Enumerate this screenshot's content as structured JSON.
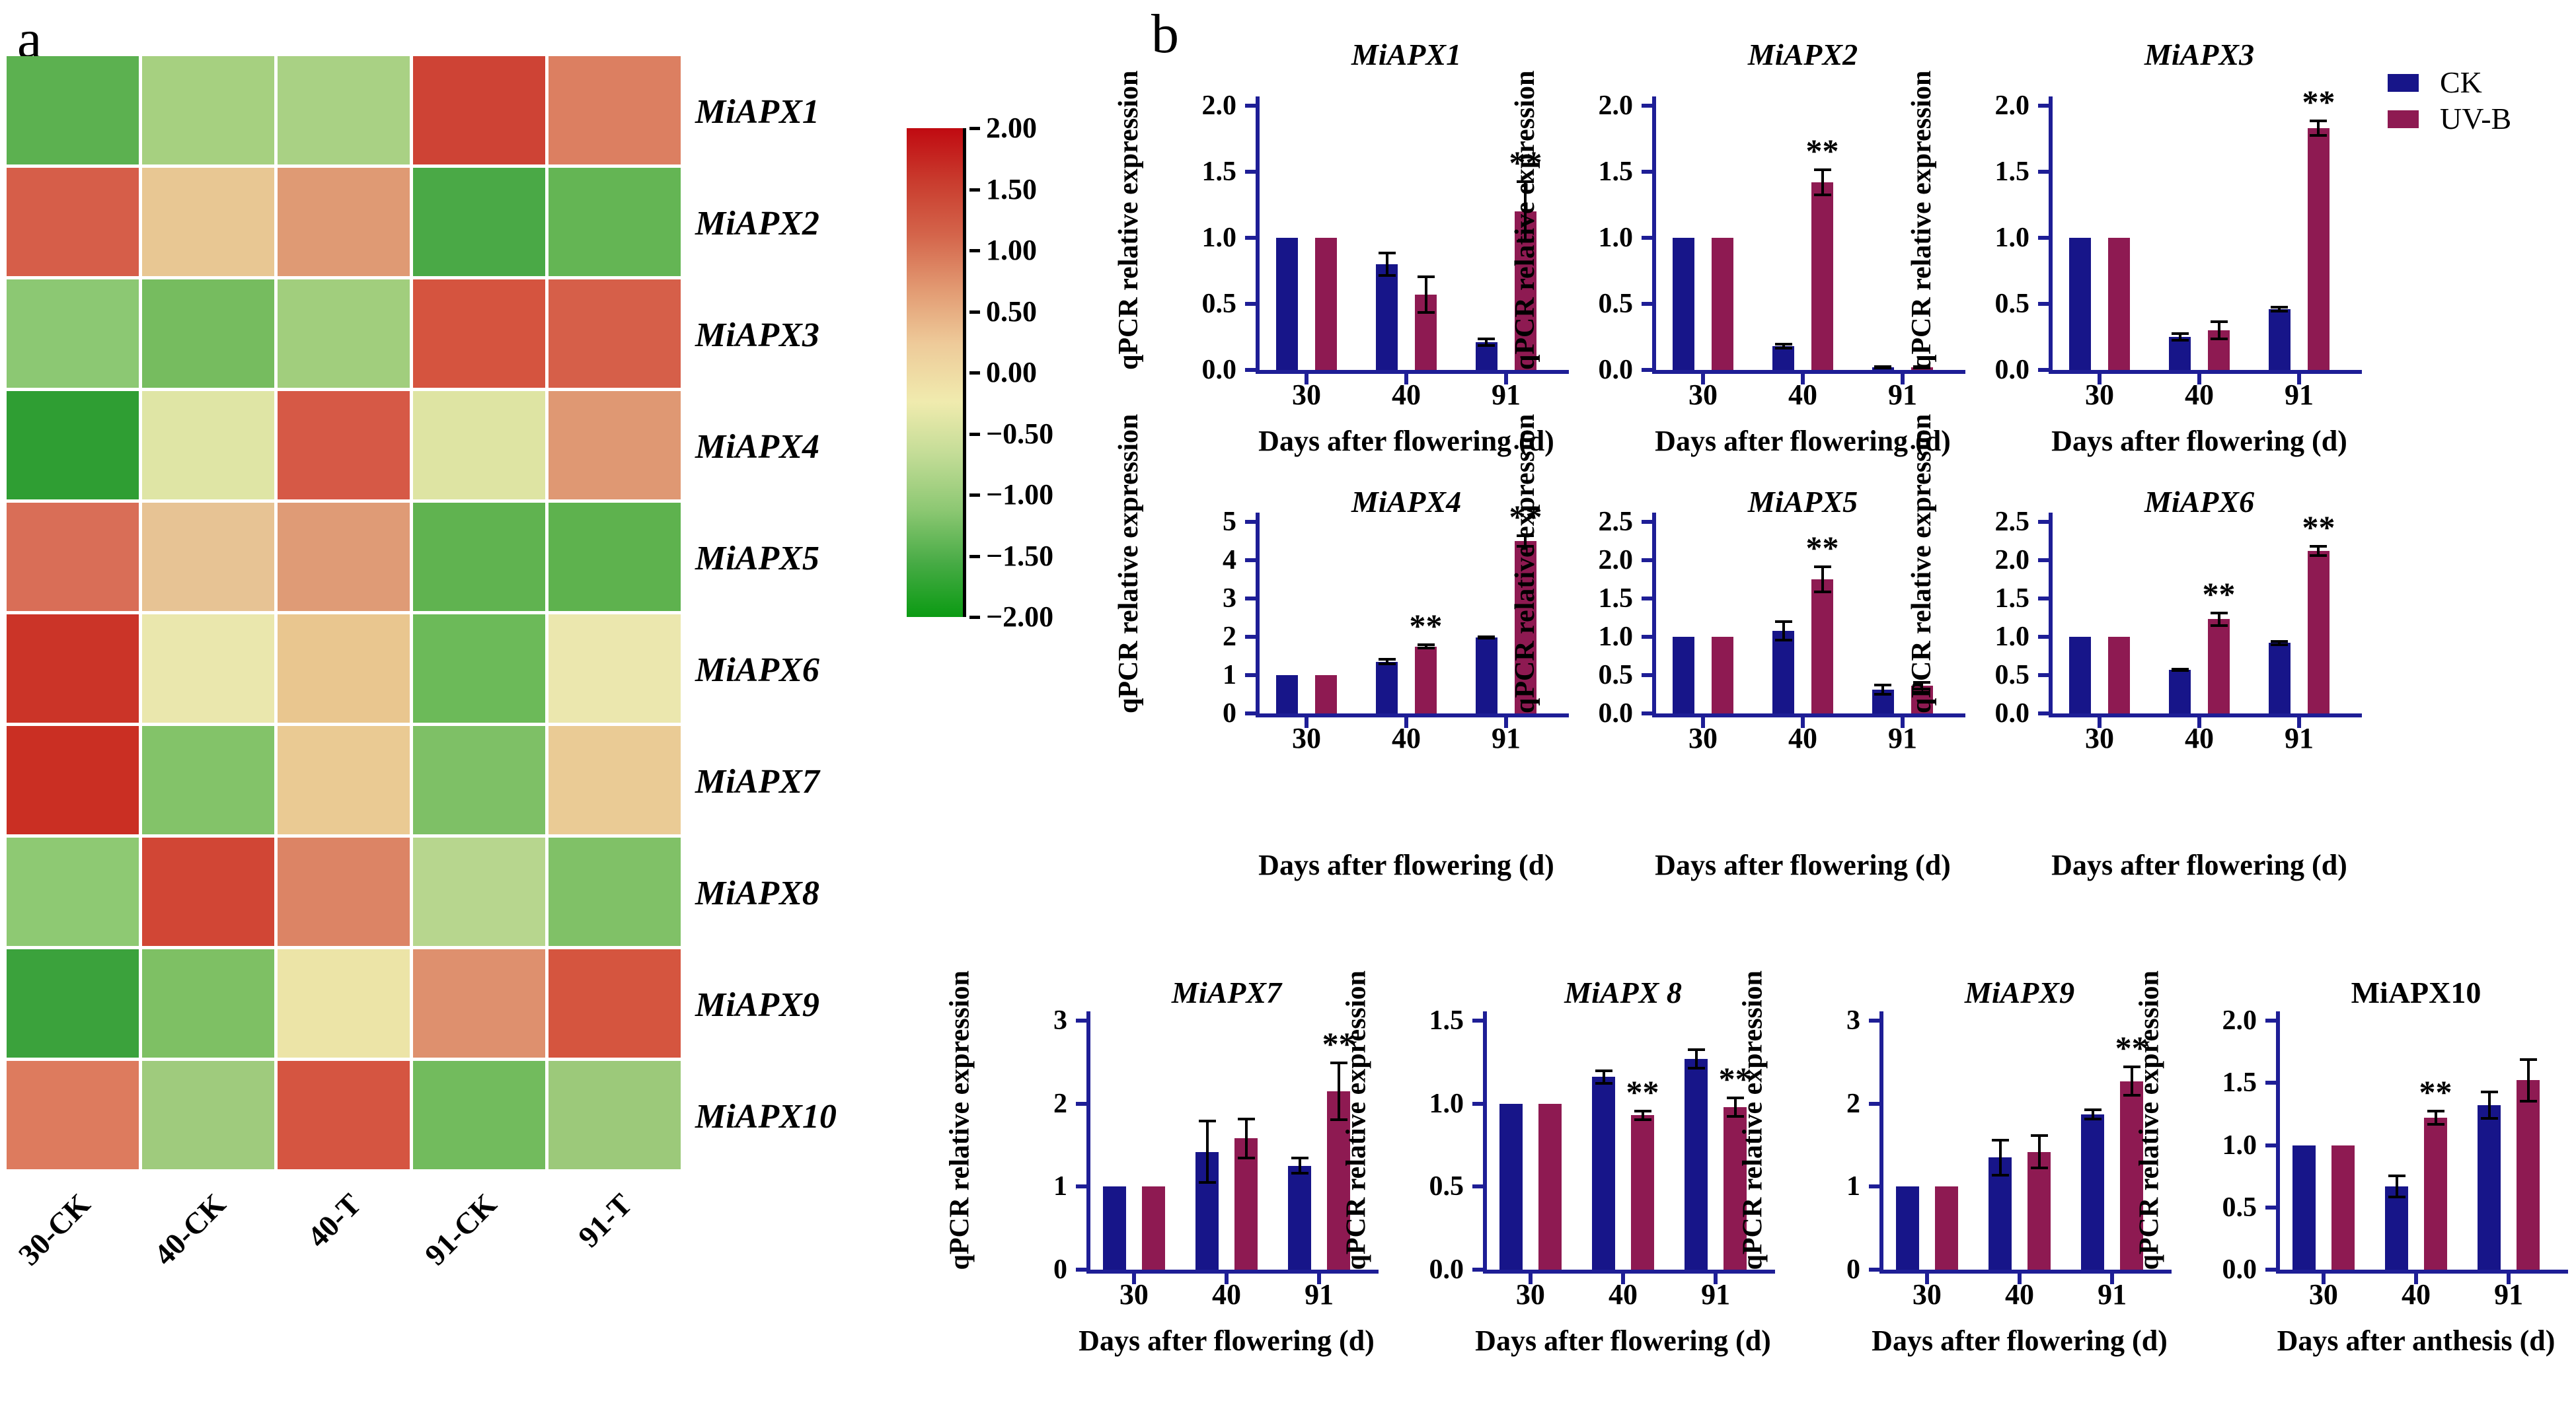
{
  "panels": {
    "a": "a",
    "b": "b"
  },
  "colors": {
    "ck": "#171589",
    "uvb": "#8e1a52",
    "axis": "#1e1e96",
    "error_bar": "#000000",
    "significance": "#000000",
    "heatmap_gap": "#ffffff"
  },
  "legend": {
    "items": [
      {
        "label": "CK",
        "color_key": "ck"
      },
      {
        "label": "UV-B",
        "color_key": "uvb"
      }
    ]
  },
  "chart_data": [
    {
      "id": "heatmap",
      "type": "heatmap",
      "columns": [
        "30-CK",
        "40-CK",
        "40-T",
        "91-CK",
        "91-T"
      ],
      "rows": [
        "MiAPX1",
        "MiAPX2",
        "MiAPX3",
        "MiAPX4",
        "MiAPX5",
        "MiAPX6",
        "MiAPX7",
        "MiAPX8",
        "MiAPX9",
        "MiAPX10"
      ],
      "values_zscore_estimated": [
        [
          -1.0,
          -0.5,
          -0.5,
          1.5,
          0.8
        ],
        [
          1.2,
          0.4,
          0.8,
          -1.3,
          -1.0
        ],
        [
          -0.7,
          -0.9,
          -0.55,
          1.4,
          1.2
        ],
        [
          -1.8,
          -0.2,
          1.2,
          -0.2,
          0.8
        ],
        [
          1.0,
          0.45,
          0.75,
          -1.1,
          -1.1
        ],
        [
          1.7,
          -0.1,
          0.5,
          -0.9,
          -0.1
        ],
        [
          1.8,
          -0.8,
          0.45,
          -0.75,
          0.45
        ],
        [
          -0.7,
          1.3,
          0.85,
          -0.45,
          -0.8
        ],
        [
          -1.5,
          -0.75,
          -0.1,
          0.65,
          1.4
        ],
        [
          0.8,
          -0.6,
          1.4,
          -0.85,
          -0.55
        ]
      ],
      "cell_colors": [
        [
          "#5cb150",
          "#a6d080",
          "#a9d184",
          "#ce4335",
          "#dc7f61"
        ],
        [
          "#d65e49",
          "#e8c793",
          "#df9a74",
          "#4aa946",
          "#64b554"
        ],
        [
          "#8cc873",
          "#76bc5f",
          "#a1ce7d",
          "#d5543f",
          "#d65f49"
        ],
        [
          "#2f9e33",
          "#dfe5a5",
          "#d65946",
          "#dee4a3",
          "#df9873"
        ],
        [
          "#d96e57",
          "#e7c394",
          "#df9b76",
          "#60b350",
          "#5eb24e"
        ],
        [
          "#cb3428",
          "#eae7ad",
          "#e9c68f",
          "#6cba59",
          "#ebe7ae"
        ],
        [
          "#ca2f23",
          "#83c369",
          "#eaca93",
          "#7ec066",
          "#eacb95"
        ],
        [
          "#8ec973",
          "#d14635",
          "#dc8465",
          "#b7d68e",
          "#80c167"
        ],
        [
          "#3ba23c",
          "#7ec064",
          "#ece4a7",
          "#de906e",
          "#d5553f"
        ],
        [
          "#dd7b5e",
          "#9fcb7d",
          "#d55541",
          "#72bb5d",
          "#9cc97a"
        ]
      ],
      "colorbar": {
        "ticks": [
          "2.00",
          "1.50",
          "1.00",
          "0.50",
          "0.00",
          "−0.50",
          "−1.00",
          "−1.50",
          "−2.00"
        ],
        "gradient": [
          "#c00a11",
          "#c93c2e",
          "#d4654b",
          "#e29a72",
          "#eeca99",
          "#f0ebae",
          "#c2dc96",
          "#8dc873",
          "#47ab45",
          "#0b9b13"
        ]
      }
    },
    {
      "id": "MiAPX1",
      "type": "bar",
      "title": "MiAPX1",
      "title_italic": true,
      "categories": [
        "30",
        "40",
        "91"
      ],
      "series": [
        {
          "name": "CK",
          "values": [
            1.0,
            0.8,
            0.21
          ],
          "errors": [
            0,
            0.09,
            0.03
          ]
        },
        {
          "name": "UV-B",
          "values": [
            1.0,
            0.57,
            1.2
          ],
          "errors": [
            0,
            0.14,
            0.23
          ]
        }
      ],
      "significance": [
        "",
        "",
        "**"
      ],
      "xlabel": "Days after flowering (d)",
      "ylabel": "qPCR relative expression",
      "ylim": [
        0,
        2
      ],
      "yticks": [
        "0.0",
        "0.5",
        "1.0",
        "1.5",
        "2.0"
      ],
      "layout": {
        "row": 1,
        "col": 1
      }
    },
    {
      "id": "MiAPX2",
      "type": "bar",
      "title": "MiAPX2",
      "title_italic": true,
      "categories": [
        "30",
        "40",
        "91"
      ],
      "series": [
        {
          "name": "CK",
          "values": [
            1.0,
            0.18,
            0.02
          ],
          "errors": [
            0,
            0.02,
            0.01
          ]
        },
        {
          "name": "UV-B",
          "values": [
            1.0,
            1.42,
            0.02
          ],
          "errors": [
            0,
            0.1,
            0.01
          ]
        }
      ],
      "significance": [
        "",
        "**",
        ""
      ],
      "xlabel": "Days after flowering (d)",
      "ylabel": "qPCR relative expression",
      "ylim": [
        0,
        2
      ],
      "yticks": [
        "0.0",
        "0.5",
        "1.0",
        "1.5",
        "2.0"
      ],
      "layout": {
        "row": 1,
        "col": 2
      }
    },
    {
      "id": "MiAPX3",
      "type": "bar",
      "title": "MiAPX3",
      "title_italic": true,
      "categories": [
        "30",
        "40",
        "91"
      ],
      "series": [
        {
          "name": "CK",
          "values": [
            1.0,
            0.25,
            0.46
          ],
          "errors": [
            0,
            0.03,
            0.02
          ]
        },
        {
          "name": "UV-B",
          "values": [
            1.0,
            0.3,
            1.83
          ],
          "errors": [
            0,
            0.07,
            0.06
          ]
        }
      ],
      "significance": [
        "",
        "",
        "**"
      ],
      "xlabel": "Days after flowering (d)",
      "ylabel": "qPCR relative expression",
      "ylim": [
        0,
        2
      ],
      "yticks": [
        "0.0",
        "0.5",
        "1.0",
        "1.5",
        "2.0"
      ],
      "layout": {
        "row": 1,
        "col": 3
      }
    },
    {
      "id": "MiAPX4",
      "type": "bar",
      "title": "MiAPX4",
      "title_italic": true,
      "categories": [
        "30",
        "40",
        "91"
      ],
      "series": [
        {
          "name": "CK",
          "values": [
            1.0,
            1.35,
            1.98
          ],
          "errors": [
            0,
            0.08,
            0.04
          ]
        },
        {
          "name": "UV-B",
          "values": [
            1.0,
            1.75,
            4.5
          ],
          "errors": [
            0,
            0.06,
            0.16
          ]
        }
      ],
      "significance": [
        "",
        "**",
        "**"
      ],
      "xlabel": "Days after flowering (d)",
      "ylabel": "qPCR relative expression",
      "ylim": [
        0,
        5
      ],
      "yticks": [
        "0",
        "1",
        "2",
        "3",
        "4",
        "5"
      ],
      "layout": {
        "row": 2,
        "col": 1
      }
    },
    {
      "id": "MiAPX5",
      "type": "bar",
      "title": "MiAPX5",
      "title_italic": true,
      "categories": [
        "30",
        "40",
        "91"
      ],
      "series": [
        {
          "name": "CK",
          "values": [
            1.0,
            1.08,
            0.31
          ],
          "errors": [
            0,
            0.13,
            0.07
          ]
        },
        {
          "name": "UV-B",
          "values": [
            1.0,
            1.75,
            0.36
          ],
          "errors": [
            0,
            0.17,
            0.05
          ]
        }
      ],
      "significance": [
        "",
        "**",
        ""
      ],
      "xlabel": "Days after flowering (d)",
      "ylabel": "qPCR relative expression",
      "ylim": [
        0,
        2.5
      ],
      "yticks": [
        "0.0",
        "0.5",
        "1.0",
        "1.5",
        "2.0",
        "2.5"
      ],
      "layout": {
        "row": 2,
        "col": 2
      }
    },
    {
      "id": "MiAPX6",
      "type": "bar",
      "title": "MiAPX6",
      "title_italic": true,
      "categories": [
        "30",
        "40",
        "91"
      ],
      "series": [
        {
          "name": "CK",
          "values": [
            1.0,
            0.57,
            0.92
          ],
          "errors": [
            0,
            0.02,
            0.03
          ]
        },
        {
          "name": "UV-B",
          "values": [
            1.0,
            1.23,
            2.12
          ],
          "errors": [
            0,
            0.09,
            0.07
          ]
        }
      ],
      "significance": [
        "",
        "**",
        "**"
      ],
      "xlabel": "Days after flowering (d)",
      "ylabel": "qPCR relative expression",
      "ylim": [
        0,
        2.5
      ],
      "yticks": [
        "0.0",
        "0.5",
        "1.0",
        "1.5",
        "2.0",
        "2.5"
      ],
      "layout": {
        "row": 2,
        "col": 3
      }
    },
    {
      "id": "MiAPX7",
      "type": "bar",
      "title": "MiAPX7",
      "title_italic": true,
      "categories": [
        "30",
        "40",
        "91"
      ],
      "series": [
        {
          "name": "CK",
          "values": [
            1.0,
            1.42,
            1.25
          ],
          "errors": [
            0,
            0.38,
            0.1
          ]
        },
        {
          "name": "UV-B",
          "values": [
            1.0,
            1.58,
            2.15
          ],
          "errors": [
            0,
            0.24,
            0.35
          ]
        }
      ],
      "significance": [
        "",
        "",
        "**"
      ],
      "xlabel": "Days after flowering (d)",
      "ylabel": "qPCR relative expression",
      "ylim": [
        0,
        3
      ],
      "yticks": [
        "0",
        "1",
        "2",
        "3"
      ],
      "layout": {
        "row": 3,
        "col": 1
      }
    },
    {
      "id": "MiAPX8",
      "type": "bar",
      "title": "MiAPX 8",
      "title_italic": true,
      "categories": [
        "30",
        "40",
        "91"
      ],
      "series": [
        {
          "name": "CK",
          "values": [
            1.0,
            1.16,
            1.27
          ],
          "errors": [
            0,
            0.04,
            0.06
          ]
        },
        {
          "name": "UV-B",
          "values": [
            1.0,
            0.93,
            0.98
          ],
          "errors": [
            0,
            0.03,
            0.06
          ]
        }
      ],
      "significance": [
        "",
        "**",
        "**"
      ],
      "xlabel": "Days after flowering (d)",
      "ylabel": "qPCR relative expression",
      "ylim": [
        0,
        1.5
      ],
      "yticks": [
        "0.0",
        "0.5",
        "1.0",
        "1.5"
      ],
      "layout": {
        "row": 3,
        "col": 2
      }
    },
    {
      "id": "MiAPX9",
      "type": "bar",
      "title": "MiAPX9",
      "title_italic": true,
      "categories": [
        "30",
        "40",
        "91"
      ],
      "series": [
        {
          "name": "CK",
          "values": [
            1.0,
            1.35,
            1.87
          ],
          "errors": [
            0,
            0.22,
            0.06
          ]
        },
        {
          "name": "UV-B",
          "values": [
            1.0,
            1.42,
            2.27
          ],
          "errors": [
            0,
            0.2,
            0.18
          ]
        }
      ],
      "significance": [
        "",
        "",
        "**"
      ],
      "xlabel": "Days after flowering (d)",
      "ylabel": "qPCR relative expression",
      "ylim": [
        0,
        3
      ],
      "yticks": [
        "0",
        "1",
        "2",
        "3"
      ],
      "layout": {
        "row": 3,
        "col": 3
      }
    },
    {
      "id": "MiAPX10",
      "type": "bar",
      "title": "MiAPX10",
      "title_italic": false,
      "categories": [
        "30",
        "40",
        "91"
      ],
      "series": [
        {
          "name": "CK",
          "values": [
            1.0,
            0.67,
            1.32
          ],
          "errors": [
            0,
            0.09,
            0.11
          ]
        },
        {
          "name": "UV-B",
          "values": [
            1.0,
            1.22,
            1.52
          ],
          "errors": [
            0,
            0.06,
            0.17
          ]
        }
      ],
      "significance": [
        "",
        "**",
        ""
      ],
      "xlabel": "Days after anthesis (d)",
      "ylabel": "qPCR relative expression",
      "ylim": [
        0,
        2
      ],
      "yticks": [
        "0.0",
        "0.5",
        "1.0",
        "1.5",
        "2.0"
      ],
      "layout": {
        "row": 3,
        "col": 4
      }
    }
  ]
}
